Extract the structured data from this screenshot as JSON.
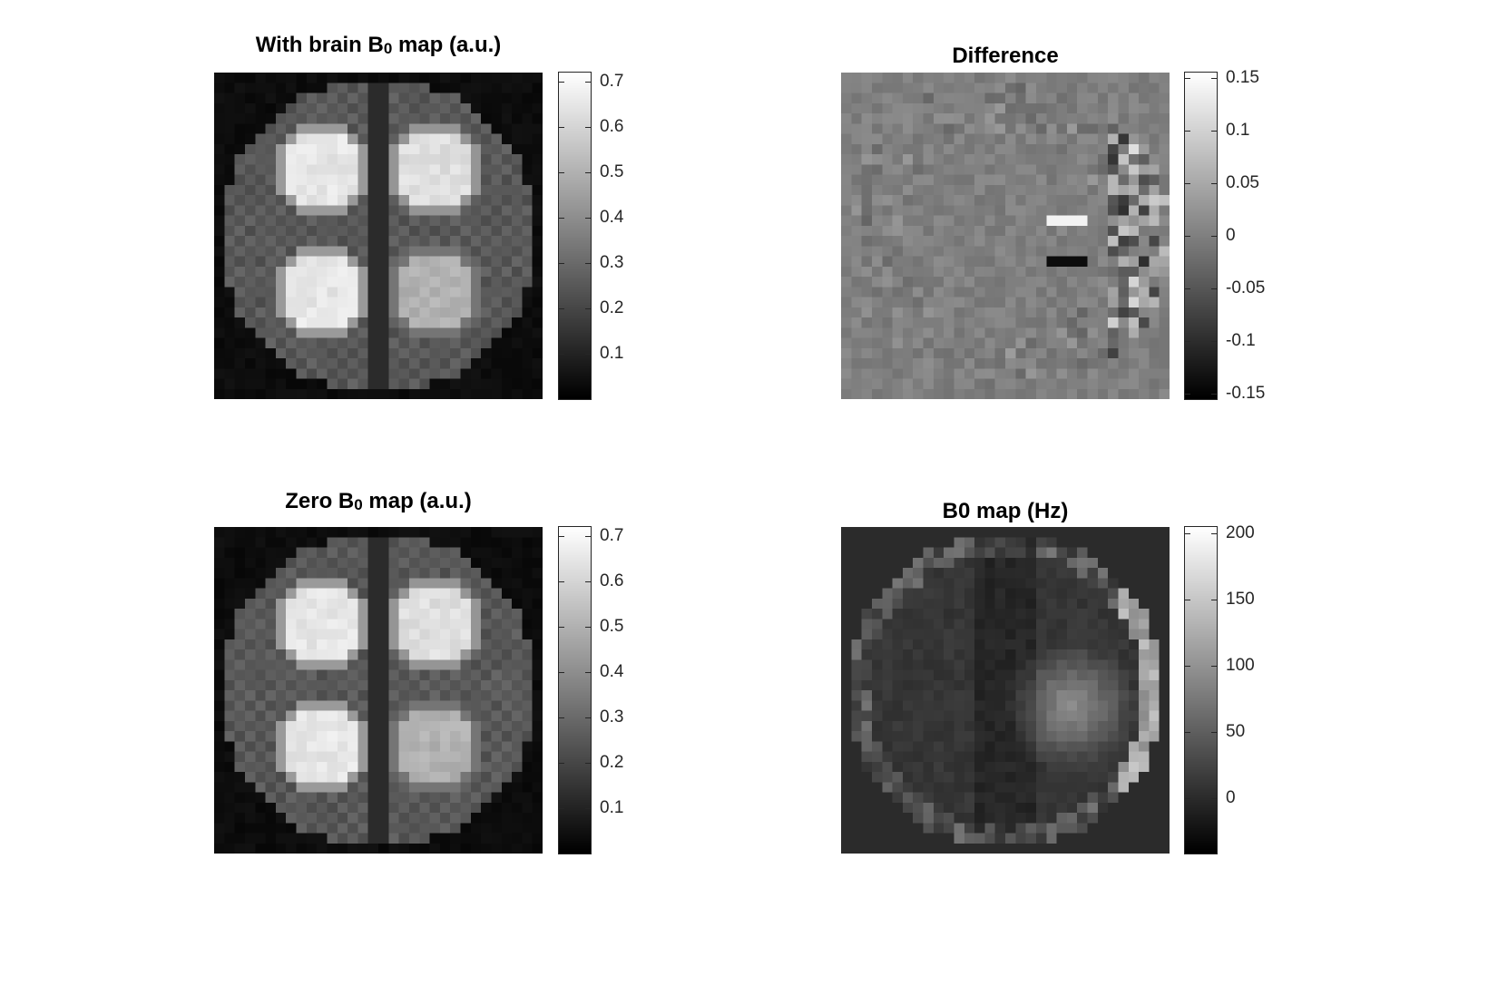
{
  "chart_data": [
    {
      "type": "heatmap",
      "id": "with-brain",
      "title": "With brain B",
      "title_sub": "0",
      "title_suffix": " map (a.u.)",
      "colormap": "gray",
      "clim": [
        0,
        0.72
      ],
      "colorbar_ticks": [
        0.1,
        0.2,
        0.3,
        0.4,
        0.5,
        0.6,
        0.7
      ],
      "colorbar_labels": [
        "0.1",
        "0.2",
        "0.3",
        "0.4",
        "0.5",
        "0.6",
        "0.7"
      ],
      "grid_size": [
        32,
        32
      ],
      "phantom": {
        "background": 0.02,
        "disc": 0.22,
        "blobs": [
          0.62,
          0.6,
          0.62,
          0.47
        ]
      }
    },
    {
      "type": "heatmap",
      "id": "difference",
      "title": "Difference",
      "colormap": "gray",
      "clim": [
        -0.155,
        0.155
      ],
      "colorbar_ticks": [
        0.15,
        0.1,
        0.05,
        0,
        -0.05,
        -0.1,
        -0.15
      ],
      "colorbar_labels": [
        "0.15",
        "0.1",
        "0.05",
        "0",
        "-0.05",
        "-0.1",
        "-0.15"
      ],
      "grid_size": [
        32,
        32
      ],
      "phantom": {
        "background": 0.0
      }
    },
    {
      "type": "heatmap",
      "id": "zero-b0",
      "title": "Zero B",
      "title_sub": "0",
      "title_suffix": " map (a.u.)",
      "colormap": "gray",
      "clim": [
        0,
        0.72
      ],
      "colorbar_ticks": [
        0.1,
        0.2,
        0.3,
        0.4,
        0.5,
        0.6,
        0.7
      ],
      "colorbar_labels": [
        "0.1",
        "0.2",
        "0.3",
        "0.4",
        "0.5",
        "0.6",
        "0.7"
      ],
      "grid_size": [
        32,
        32
      ],
      "phantom": {
        "background": 0.02,
        "disc": 0.22,
        "blobs": [
          0.62,
          0.6,
          0.62,
          0.47
        ]
      }
    },
    {
      "type": "heatmap",
      "id": "b0-map",
      "title": "B0 map (Hz)",
      "colormap": "gray",
      "clim": [
        -42,
        205
      ],
      "colorbar_ticks": [
        200,
        150,
        100,
        50,
        0
      ],
      "colorbar_labels": [
        "200",
        "150",
        "100",
        "50",
        "0"
      ],
      "grid_size": [
        32,
        32
      ],
      "phantom": {
        "background": 0,
        "disc": 10,
        "hotspot": 90
      }
    }
  ]
}
